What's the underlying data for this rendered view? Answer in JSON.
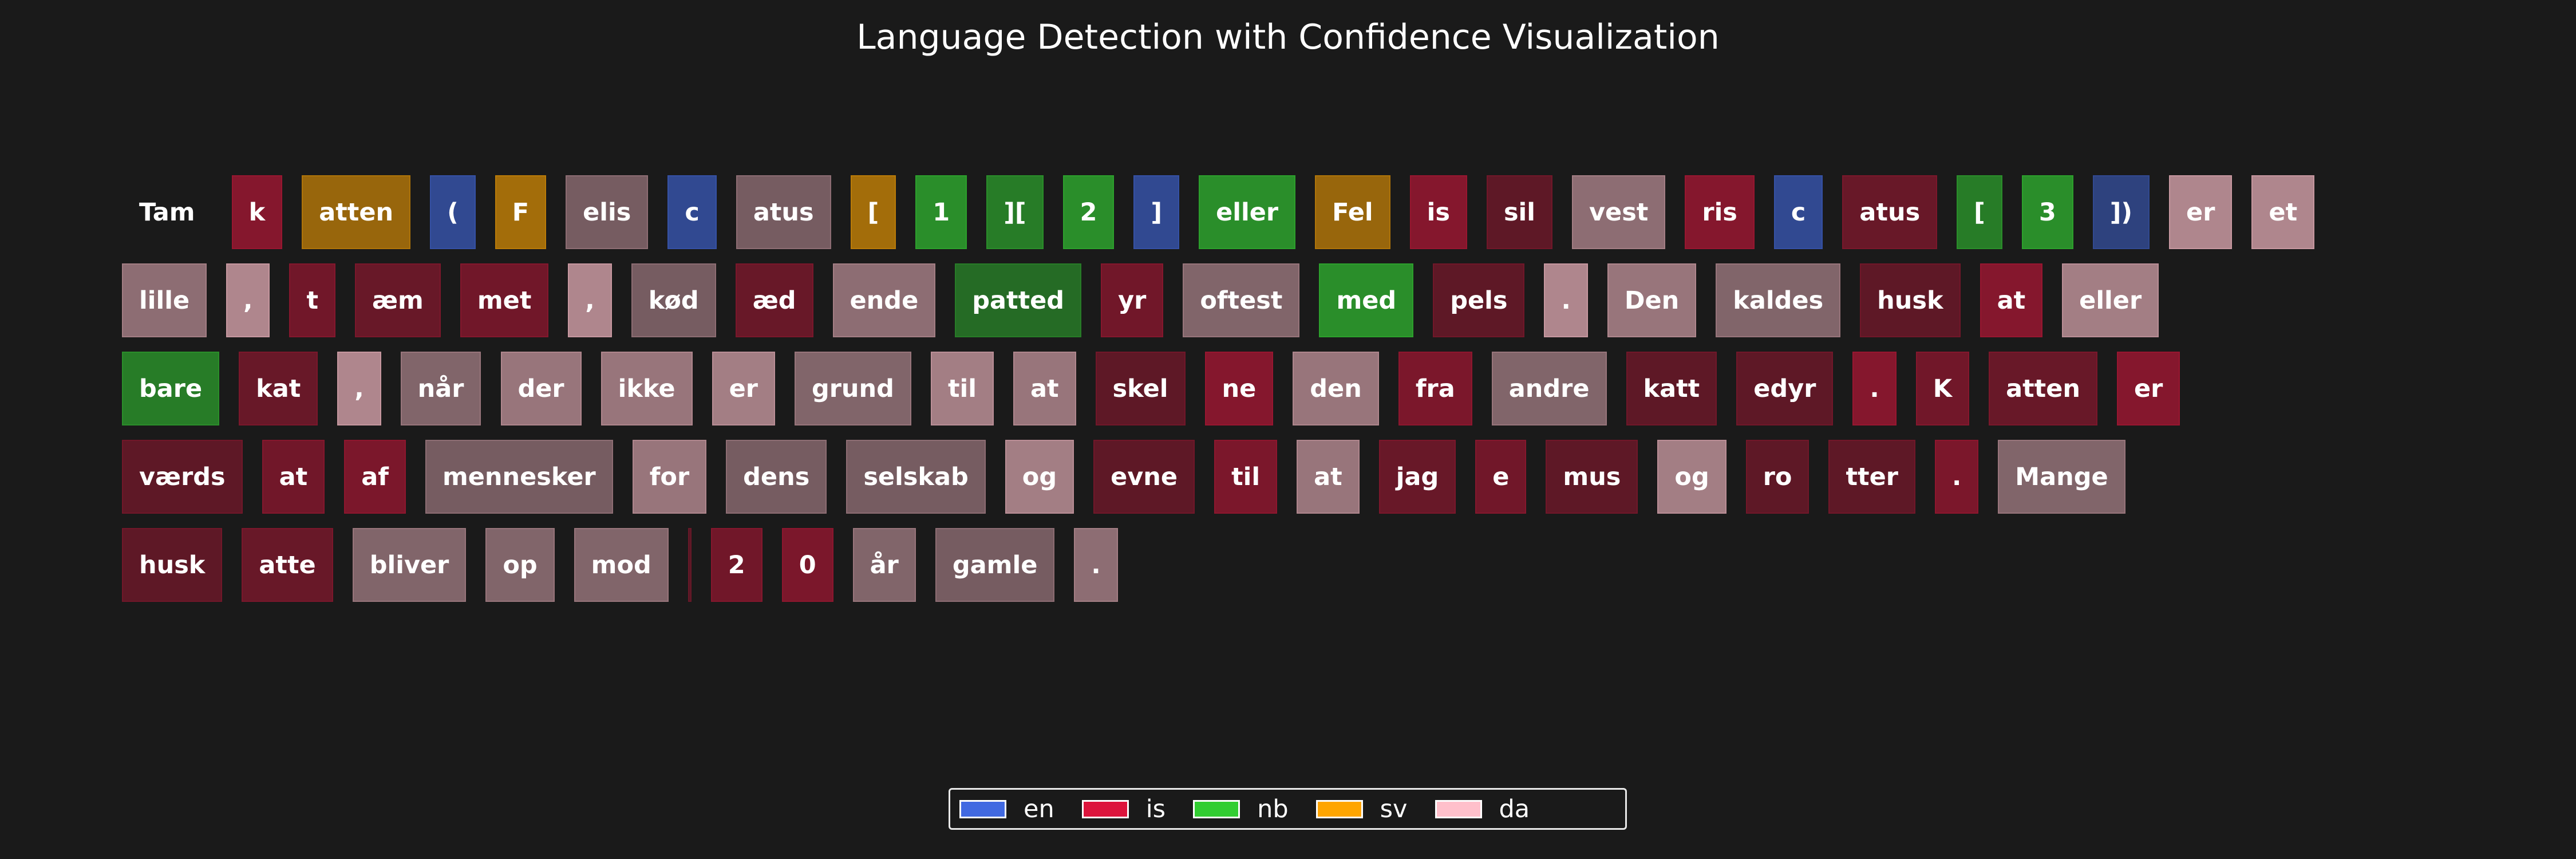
{
  "chart_data": {
    "type": "token-highlight",
    "title": "Language Detection with Confidence Visualization",
    "colors": {
      "en": "#4169e1",
      "is": "#dc143c",
      "nb": "#32cd32",
      "sv": "#ffa500",
      "da": "#ffc0cb",
      "none": "#1a1a1a"
    },
    "legend": [
      {
        "lang": "en",
        "label": "en"
      },
      {
        "lang": "is",
        "label": "is"
      },
      {
        "lang": "nb",
        "label": "nb"
      },
      {
        "lang": "sv",
        "label": "sv"
      },
      {
        "lang": "da",
        "label": "da"
      }
    ],
    "lines": [
      [
        {
          "t": "Tam",
          "lang": "none",
          "conf": 0
        },
        {
          "t": "k",
          "lang": "is",
          "conf": 0.55
        },
        {
          "t": "atten",
          "lang": "sv",
          "conf": 0.55
        },
        {
          "t": "(",
          "lang": "en",
          "conf": 0.6
        },
        {
          "t": "F",
          "lang": "sv",
          "conf": 0.6
        },
        {
          "t": "elis",
          "lang": "da",
          "conf": 0.4
        },
        {
          "t": "c",
          "lang": "en",
          "conf": 0.6
        },
        {
          "t": "atus",
          "lang": "da",
          "conf": 0.4
        },
        {
          "t": "[",
          "lang": "sv",
          "conf": 0.6
        },
        {
          "t": "1",
          "lang": "nb",
          "conf": 0.65
        },
        {
          "t": "][",
          "lang": "nb",
          "conf": 0.55
        },
        {
          "t": "2",
          "lang": "nb",
          "conf": 0.65
        },
        {
          "t": "]",
          "lang": "en",
          "conf": 0.6
        },
        {
          "t": "eller",
          "lang": "nb",
          "conf": 0.65
        },
        {
          "t": "Fel",
          "lang": "sv",
          "conf": 0.55
        },
        {
          "t": "is",
          "lang": "is",
          "conf": 0.55
        },
        {
          "t": "sil",
          "lang": "is",
          "conf": 0.35
        },
        {
          "t": "vest",
          "lang": "da",
          "conf": 0.5
        },
        {
          "t": "ris",
          "lang": "is",
          "conf": 0.55
        },
        {
          "t": "c",
          "lang": "en",
          "conf": 0.6
        },
        {
          "t": "atus",
          "lang": "is",
          "conf": 0.4
        },
        {
          "t": "[",
          "lang": "nb",
          "conf": 0.55
        },
        {
          "t": "3",
          "lang": "nb",
          "conf": 0.65
        },
        {
          "t": "])",
          "lang": "en",
          "conf": 0.5
        },
        {
          "t": "er",
          "lang": "da",
          "conf": 0.65
        },
        {
          "t": "et",
          "lang": "da",
          "conf": 0.65
        }
      ],
      [
        {
          "t": "lille",
          "lang": "da",
          "conf": 0.5
        },
        {
          "t": ",",
          "lang": "da",
          "conf": 0.65
        },
        {
          "t": "t",
          "lang": "is",
          "conf": 0.45
        },
        {
          "t": "æm",
          "lang": "is",
          "conf": 0.4
        },
        {
          "t": "met",
          "lang": "is",
          "conf": 0.45
        },
        {
          "t": ",",
          "lang": "da",
          "conf": 0.65
        },
        {
          "t": "kød",
          "lang": "da",
          "conf": 0.4
        },
        {
          "t": "æd",
          "lang": "is",
          "conf": 0.4
        },
        {
          "t": "ende",
          "lang": "da",
          "conf": 0.5
        },
        {
          "t": "patted",
          "lang": "nb",
          "conf": 0.45
        },
        {
          "t": "yr",
          "lang": "is",
          "conf": 0.45
        },
        {
          "t": "oftest",
          "lang": "da",
          "conf": 0.45
        },
        {
          "t": "med",
          "lang": "nb",
          "conf": 0.65
        },
        {
          "t": "pels",
          "lang": "is",
          "conf": 0.35
        },
        {
          "t": ".",
          "lang": "da",
          "conf": 0.65
        },
        {
          "t": "Den",
          "lang": "da",
          "conf": 0.55
        },
        {
          "t": "kaldes",
          "lang": "da",
          "conf": 0.45
        },
        {
          "t": "husk",
          "lang": "is",
          "conf": 0.35
        },
        {
          "t": "at",
          "lang": "is",
          "conf": 0.55
        },
        {
          "t": "eller",
          "lang": "da",
          "conf": 0.6
        }
      ],
      [
        {
          "t": "bare",
          "lang": "nb",
          "conf": 0.55
        },
        {
          "t": "kat",
          "lang": "is",
          "conf": 0.4
        },
        {
          "t": ",",
          "lang": "da",
          "conf": 0.65
        },
        {
          "t": "når",
          "lang": "da",
          "conf": 0.45
        },
        {
          "t": "der",
          "lang": "da",
          "conf": 0.55
        },
        {
          "t": "ikke",
          "lang": "da",
          "conf": 0.55
        },
        {
          "t": "er",
          "lang": "da",
          "conf": 0.6
        },
        {
          "t": "grund",
          "lang": "da",
          "conf": 0.45
        },
        {
          "t": "til",
          "lang": "da",
          "conf": 0.6
        },
        {
          "t": "at",
          "lang": "da",
          "conf": 0.55
        },
        {
          "t": "skel",
          "lang": "is",
          "conf": 0.35
        },
        {
          "t": "ne",
          "lang": "is",
          "conf": 0.55
        },
        {
          "t": "den",
          "lang": "da",
          "conf": 0.55
        },
        {
          "t": "fra",
          "lang": "is",
          "conf": 0.5
        },
        {
          "t": "andre",
          "lang": "da",
          "conf": 0.45
        },
        {
          "t": "katt",
          "lang": "is",
          "conf": 0.35
        },
        {
          "t": "edyr",
          "lang": "is",
          "conf": 0.35
        },
        {
          "t": ".",
          "lang": "is",
          "conf": 0.55
        },
        {
          "t": "K",
          "lang": "is",
          "conf": 0.45
        },
        {
          "t": "atten",
          "lang": "is",
          "conf": 0.4
        },
        {
          "t": "er",
          "lang": "is",
          "conf": 0.55
        }
      ],
      [
        {
          "t": "værds",
          "lang": "is",
          "conf": 0.35
        },
        {
          "t": "at",
          "lang": "is",
          "conf": 0.45
        },
        {
          "t": "af",
          "lang": "is",
          "conf": 0.5
        },
        {
          "t": "mennesker",
          "lang": "da",
          "conf": 0.4
        },
        {
          "t": "for",
          "lang": "da",
          "conf": 0.55
        },
        {
          "t": "dens",
          "lang": "da",
          "conf": 0.4
        },
        {
          "t": "selskab",
          "lang": "da",
          "conf": 0.4
        },
        {
          "t": "og",
          "lang": "da",
          "conf": 0.6
        },
        {
          "t": "evne",
          "lang": "is",
          "conf": 0.35
        },
        {
          "t": "til",
          "lang": "is",
          "conf": 0.5
        },
        {
          "t": "at",
          "lang": "da",
          "conf": 0.55
        },
        {
          "t": "jag",
          "lang": "is",
          "conf": 0.4
        },
        {
          "t": "e",
          "lang": "is",
          "conf": 0.45
        },
        {
          "t": "mus",
          "lang": "is",
          "conf": 0.35
        },
        {
          "t": "og",
          "lang": "da",
          "conf": 0.6
        },
        {
          "t": "ro",
          "lang": "is",
          "conf": 0.35
        },
        {
          "t": "tter",
          "lang": "is",
          "conf": 0.35
        },
        {
          "t": ".",
          "lang": "is",
          "conf": 0.5
        },
        {
          "t": "Mange",
          "lang": "da",
          "conf": 0.45
        }
      ],
      [
        {
          "t": "husk",
          "lang": "is",
          "conf": 0.35
        },
        {
          "t": "atte",
          "lang": "is",
          "conf": 0.4
        },
        {
          "t": "bliver",
          "lang": "da",
          "conf": 0.45
        },
        {
          "t": "op",
          "lang": "da",
          "conf": 0.45
        },
        {
          "t": "mod",
          "lang": "da",
          "conf": 0.45
        },
        {
          "t": "",
          "lang": "is",
          "conf": 0.3
        },
        {
          "t": "2",
          "lang": "is",
          "conf": 0.45
        },
        {
          "t": "0",
          "lang": "is",
          "conf": 0.5
        },
        {
          "t": "år",
          "lang": "da",
          "conf": 0.45
        },
        {
          "t": "gamle",
          "lang": "da",
          "conf": 0.4
        },
        {
          "t": ".",
          "lang": "da",
          "conf": 0.5
        }
      ]
    ]
  }
}
